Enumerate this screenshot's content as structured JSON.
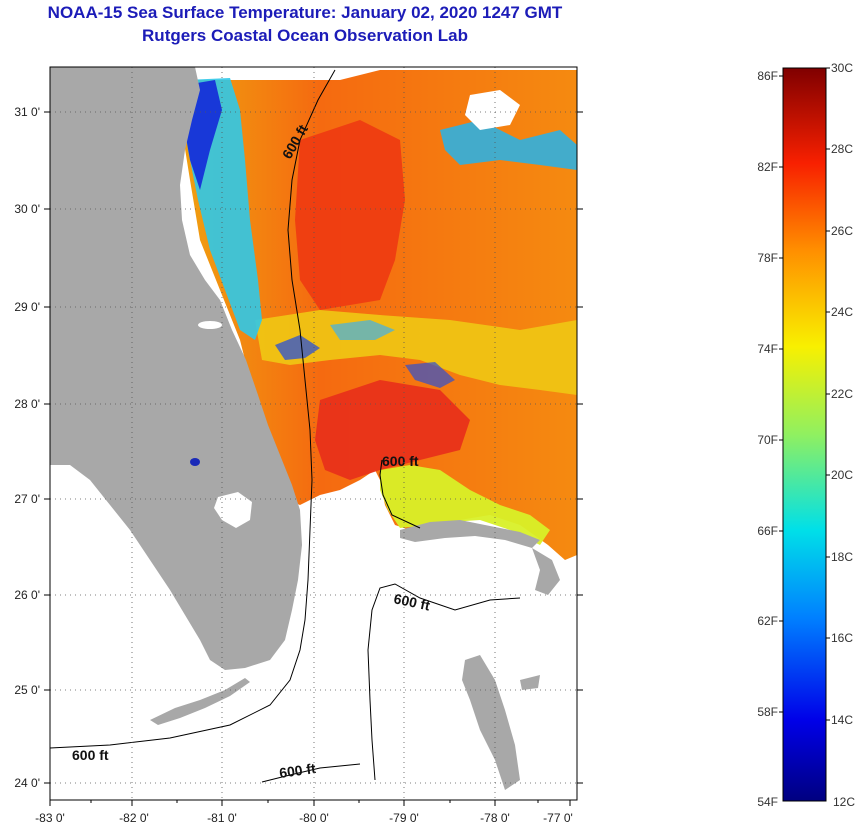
{
  "header": {
    "title_line1": "NOAA-15 Sea Surface Temperature:  January 02, 2020 1247 GMT",
    "title_line2": "Rutgers Coastal Ocean Observation Lab"
  },
  "map": {
    "lon_labels": [
      "-83 0'",
      "-82 0'",
      "-81 0'",
      "-80 0'",
      "-79 0'",
      "-78 0'",
      "-77 0'"
    ],
    "lat_labels": [
      "31 0'",
      "30 0'",
      "29 0'",
      "28 0'",
      "27 0'",
      "26 0'",
      "25 0'",
      "24 0'"
    ],
    "contour_label": "600 ft",
    "colors": {
      "land": "#a8a8a8",
      "no_data": "#ffffff",
      "warm_stream": "#f03a10",
      "coastal_cold": "#1838d8"
    }
  },
  "colorbar": {
    "f_labels": [
      "86F",
      "82F",
      "78F",
      "74F",
      "70F",
      "66F",
      "62F",
      "58F",
      "54F"
    ],
    "c_labels": [
      "30C",
      "28C",
      "26C",
      "24C",
      "22C",
      "20C",
      "18C",
      "16C",
      "14C",
      "12C"
    ]
  }
}
